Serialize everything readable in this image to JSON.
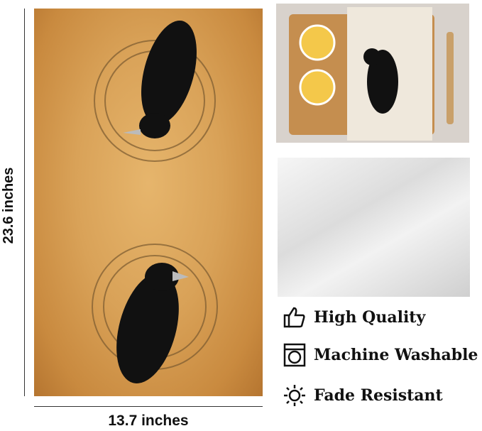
{
  "dimensions": {
    "height_label": "23.6 inches",
    "width_label": "13.7 inches"
  },
  "features": [
    {
      "icon": "thumbs-up-icon",
      "label": "High Quality"
    },
    {
      "icon": "washing-machine-icon",
      "label": "Machine Washable"
    },
    {
      "icon": "sun-icon",
      "label": "Fade Resistant"
    }
  ],
  "colors": {
    "towel": "#d9a258",
    "raven": "#111111",
    "clock": "#8a6a3a"
  }
}
